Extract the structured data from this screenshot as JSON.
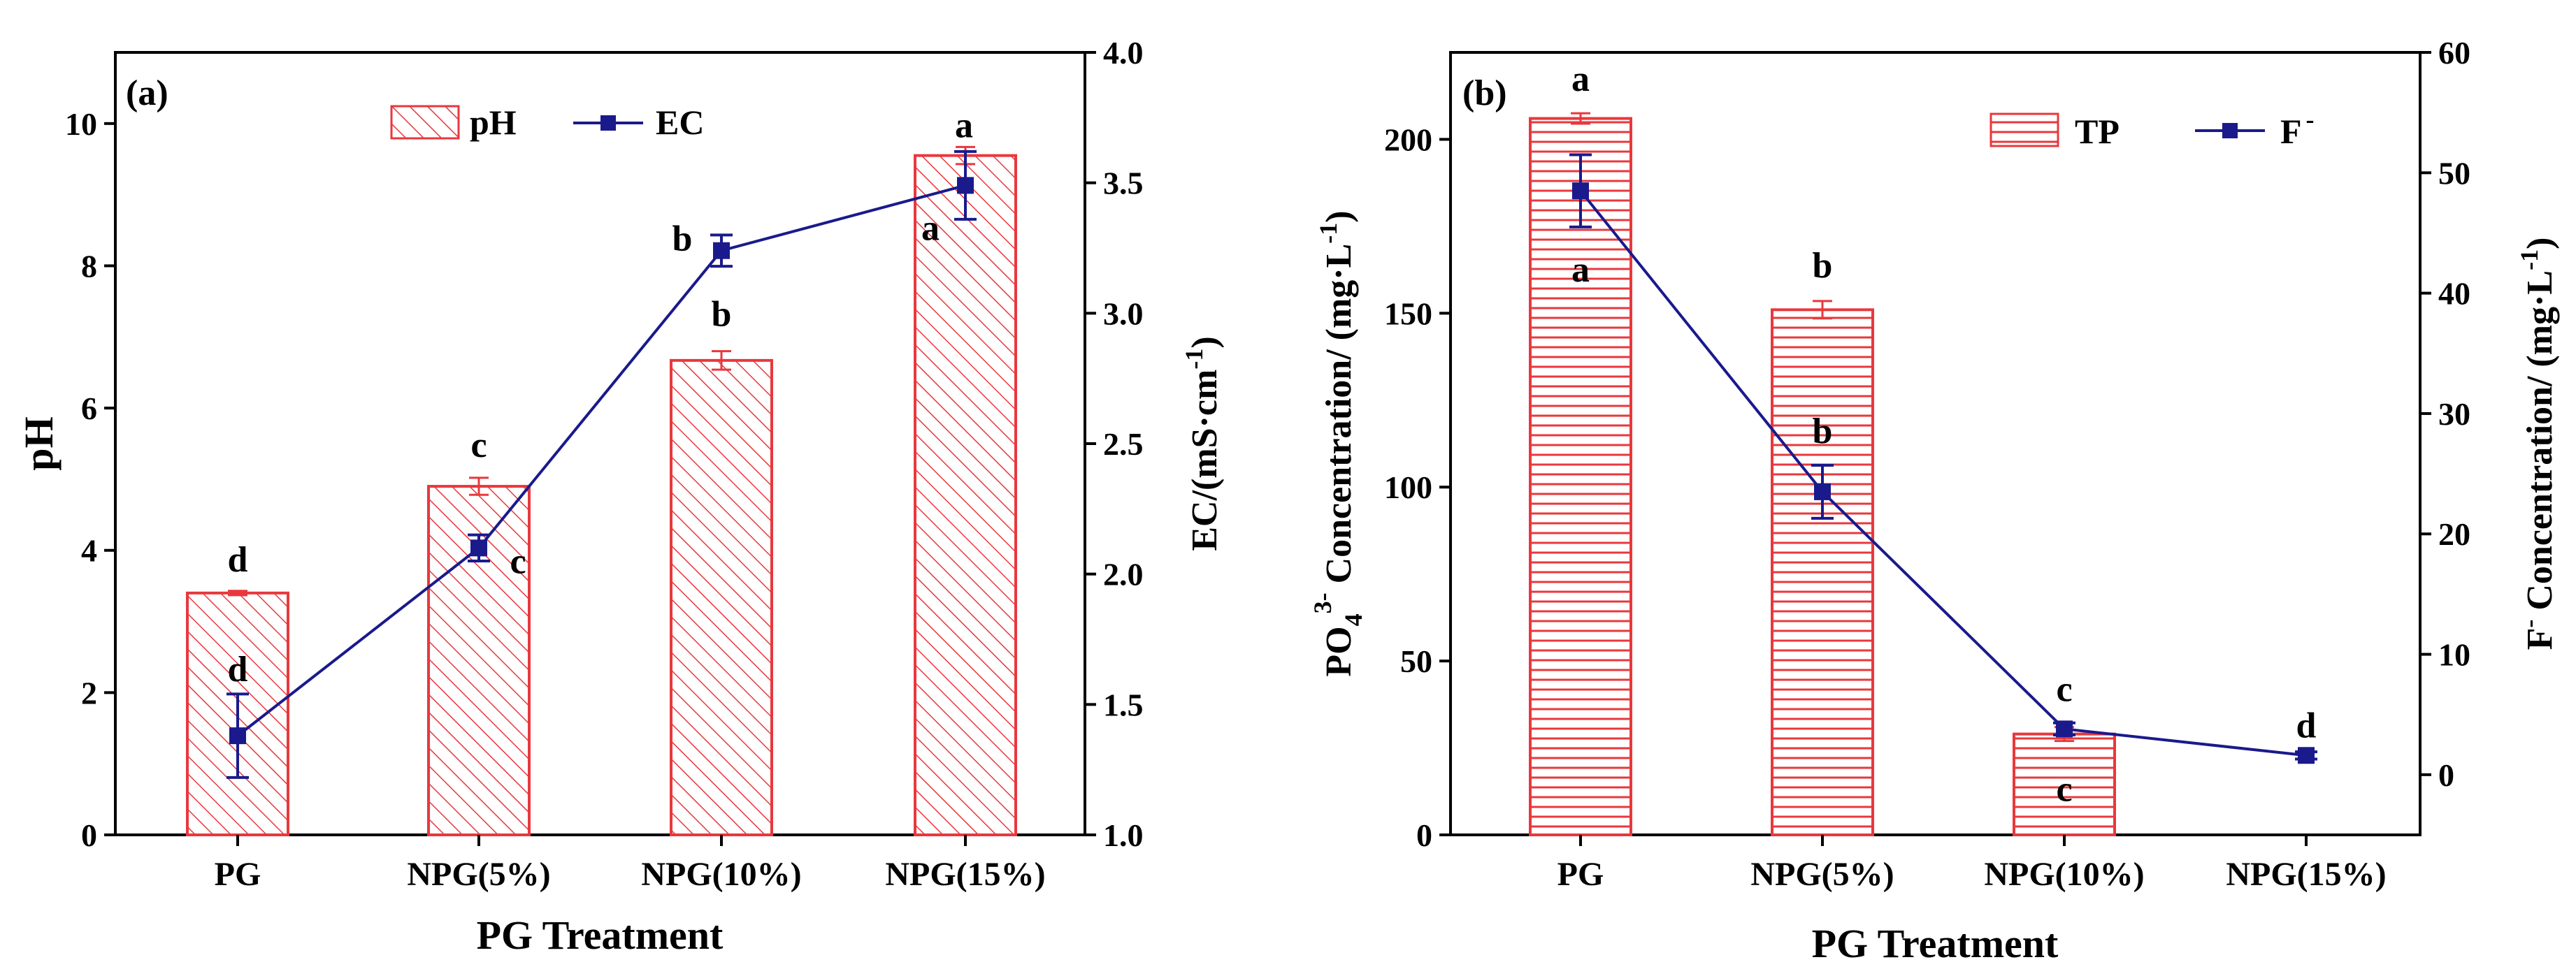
{
  "colors": {
    "bar": "#e8383d",
    "line": "#1a1a8c",
    "axis": "#000000"
  },
  "chart_data": [
    {
      "type": "bar",
      "panel": "(a)",
      "xlabel": "PG Treatment",
      "ylabel": "pH",
      "y2label": "EC/(mS·cm",
      "y2label_sup": "-1",
      "y2label_close": ")",
      "categories": [
        "PG",
        "NPG(5%)",
        "NPG(10%)",
        "NPG(15%)"
      ],
      "ylim": [
        0,
        11
      ],
      "yticks": [
        "0",
        "2",
        "4",
        "6",
        "8",
        "10"
      ],
      "y2lim": [
        1.0,
        4.0
      ],
      "y2ticks": [
        "1.0",
        "1.5",
        "2.0",
        "2.5",
        "3.0",
        "3.5",
        "4.0"
      ],
      "legend": [
        "pH",
        "EC"
      ],
      "series": [
        {
          "name": "pH",
          "kind": "bar",
          "axis": "left",
          "values": [
            3.4,
            4.9,
            6.67,
            9.55
          ],
          "errors": [
            0.03,
            0.12,
            0.13,
            0.12
          ],
          "letters": [
            "d",
            "c",
            "b",
            "a"
          ]
        },
        {
          "name": "EC",
          "kind": "line",
          "axis": "right",
          "values": [
            1.38,
            2.1,
            3.24,
            3.49
          ],
          "errors": [
            0.16,
            0.05,
            0.06,
            0.13
          ],
          "letters": [
            "d",
            "c",
            "b",
            "a"
          ]
        }
      ]
    },
    {
      "type": "bar",
      "panel": "(b)",
      "xlabel": "PG Treatment",
      "ylabel_pre": "PO",
      "ylabel_sub": "4",
      "ylabel_sup": "3-",
      "ylabel_post": " Concentration/ (mg·L",
      "ylabel_sup2": "-1",
      "ylabel_close": ")",
      "y2label_pre": "F",
      "y2label_sup": "-",
      "y2label_post": " Concentration/ (mg·L",
      "y2label_sup2": "-1",
      "y2label_close": ")",
      "categories": [
        "PG",
        "NPG(5%)",
        "NPG(10%)",
        "NPG(15%)"
      ],
      "ylim": [
        0,
        225
      ],
      "yticks": [
        "0",
        "50",
        "100",
        "150",
        "200"
      ],
      "y2lim": [
        -5,
        60
      ],
      "y2ticks": [
        "0",
        "10",
        "20",
        "30",
        "40",
        "50",
        "60"
      ],
      "legend": [
        "TP",
        "F",
        "-"
      ],
      "series": [
        {
          "name": "TP",
          "kind": "bar",
          "axis": "left",
          "values": [
            206,
            151,
            29,
            0
          ],
          "errors": [
            1.5,
            2.5,
            2,
            0
          ],
          "letters": [
            "a",
            "b",
            "c",
            ""
          ]
        },
        {
          "name": "F-",
          "kind": "line",
          "axis": "right",
          "values": [
            48.5,
            23.5,
            3.8,
            1.6
          ],
          "errors": [
            3.0,
            2.2,
            0.5,
            0.3
          ],
          "letters": [
            "a",
            "b",
            "c",
            "d"
          ]
        }
      ]
    }
  ]
}
